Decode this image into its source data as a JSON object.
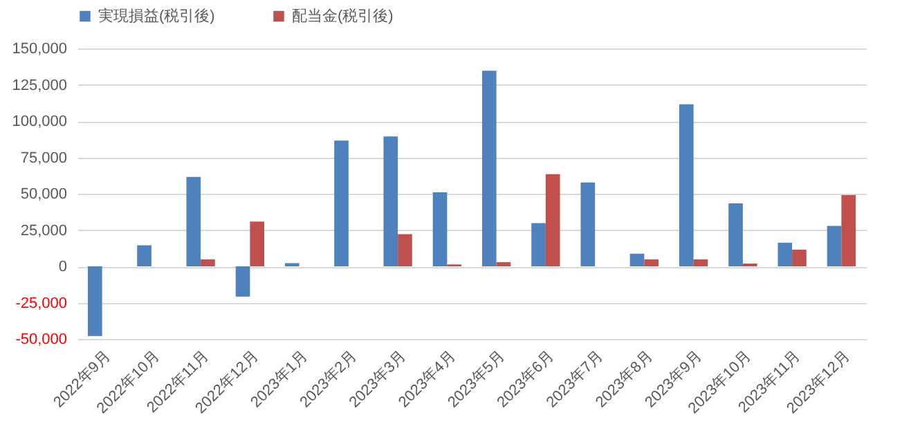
{
  "chart_data": {
    "type": "bar",
    "categories": [
      "2022年9月",
      "2022年10月",
      "2022年11月",
      "2022年12月",
      "2023年1月",
      "2023年2月",
      "2023年3月",
      "2023年4月",
      "2023年5月",
      "2023年6月",
      "2023年7月",
      "2023年8月",
      "2023年9月",
      "2023年10月",
      "2023年11月",
      "2023年12月"
    ],
    "series": [
      {
        "name": "実現損益(税引後)",
        "color": "#4f81bd",
        "values": [
          -48000,
          14500,
          61500,
          -20800,
          2200,
          86500,
          89400,
          51000,
          134600,
          29800,
          57700,
          8700,
          111500,
          43300,
          16300,
          27900
        ]
      },
      {
        "name": "配当金(税引後)",
        "color": "#c0504d",
        "values": [
          null,
          null,
          4800,
          30800,
          null,
          null,
          22100,
          1300,
          2900,
          63500,
          null,
          4800,
          4800,
          1900,
          11500,
          49000
        ]
      }
    ],
    "ylim": [
      -50000,
      150000
    ],
    "yticks": [
      {
        "value": -50000,
        "label": "-50,000"
      },
      {
        "value": -25000,
        "label": "-25,000"
      },
      {
        "value": 0,
        "label": "0"
      },
      {
        "value": 25000,
        "label": "25,000"
      },
      {
        "value": 50000,
        "label": "50,000"
      },
      {
        "value": 75000,
        "label": "75,000"
      },
      {
        "value": 100000,
        "label": "100,000"
      },
      {
        "value": 125000,
        "label": "125,000"
      },
      {
        "value": 150000,
        "label": "150,000"
      }
    ],
    "grid": "y",
    "legend": "top"
  }
}
